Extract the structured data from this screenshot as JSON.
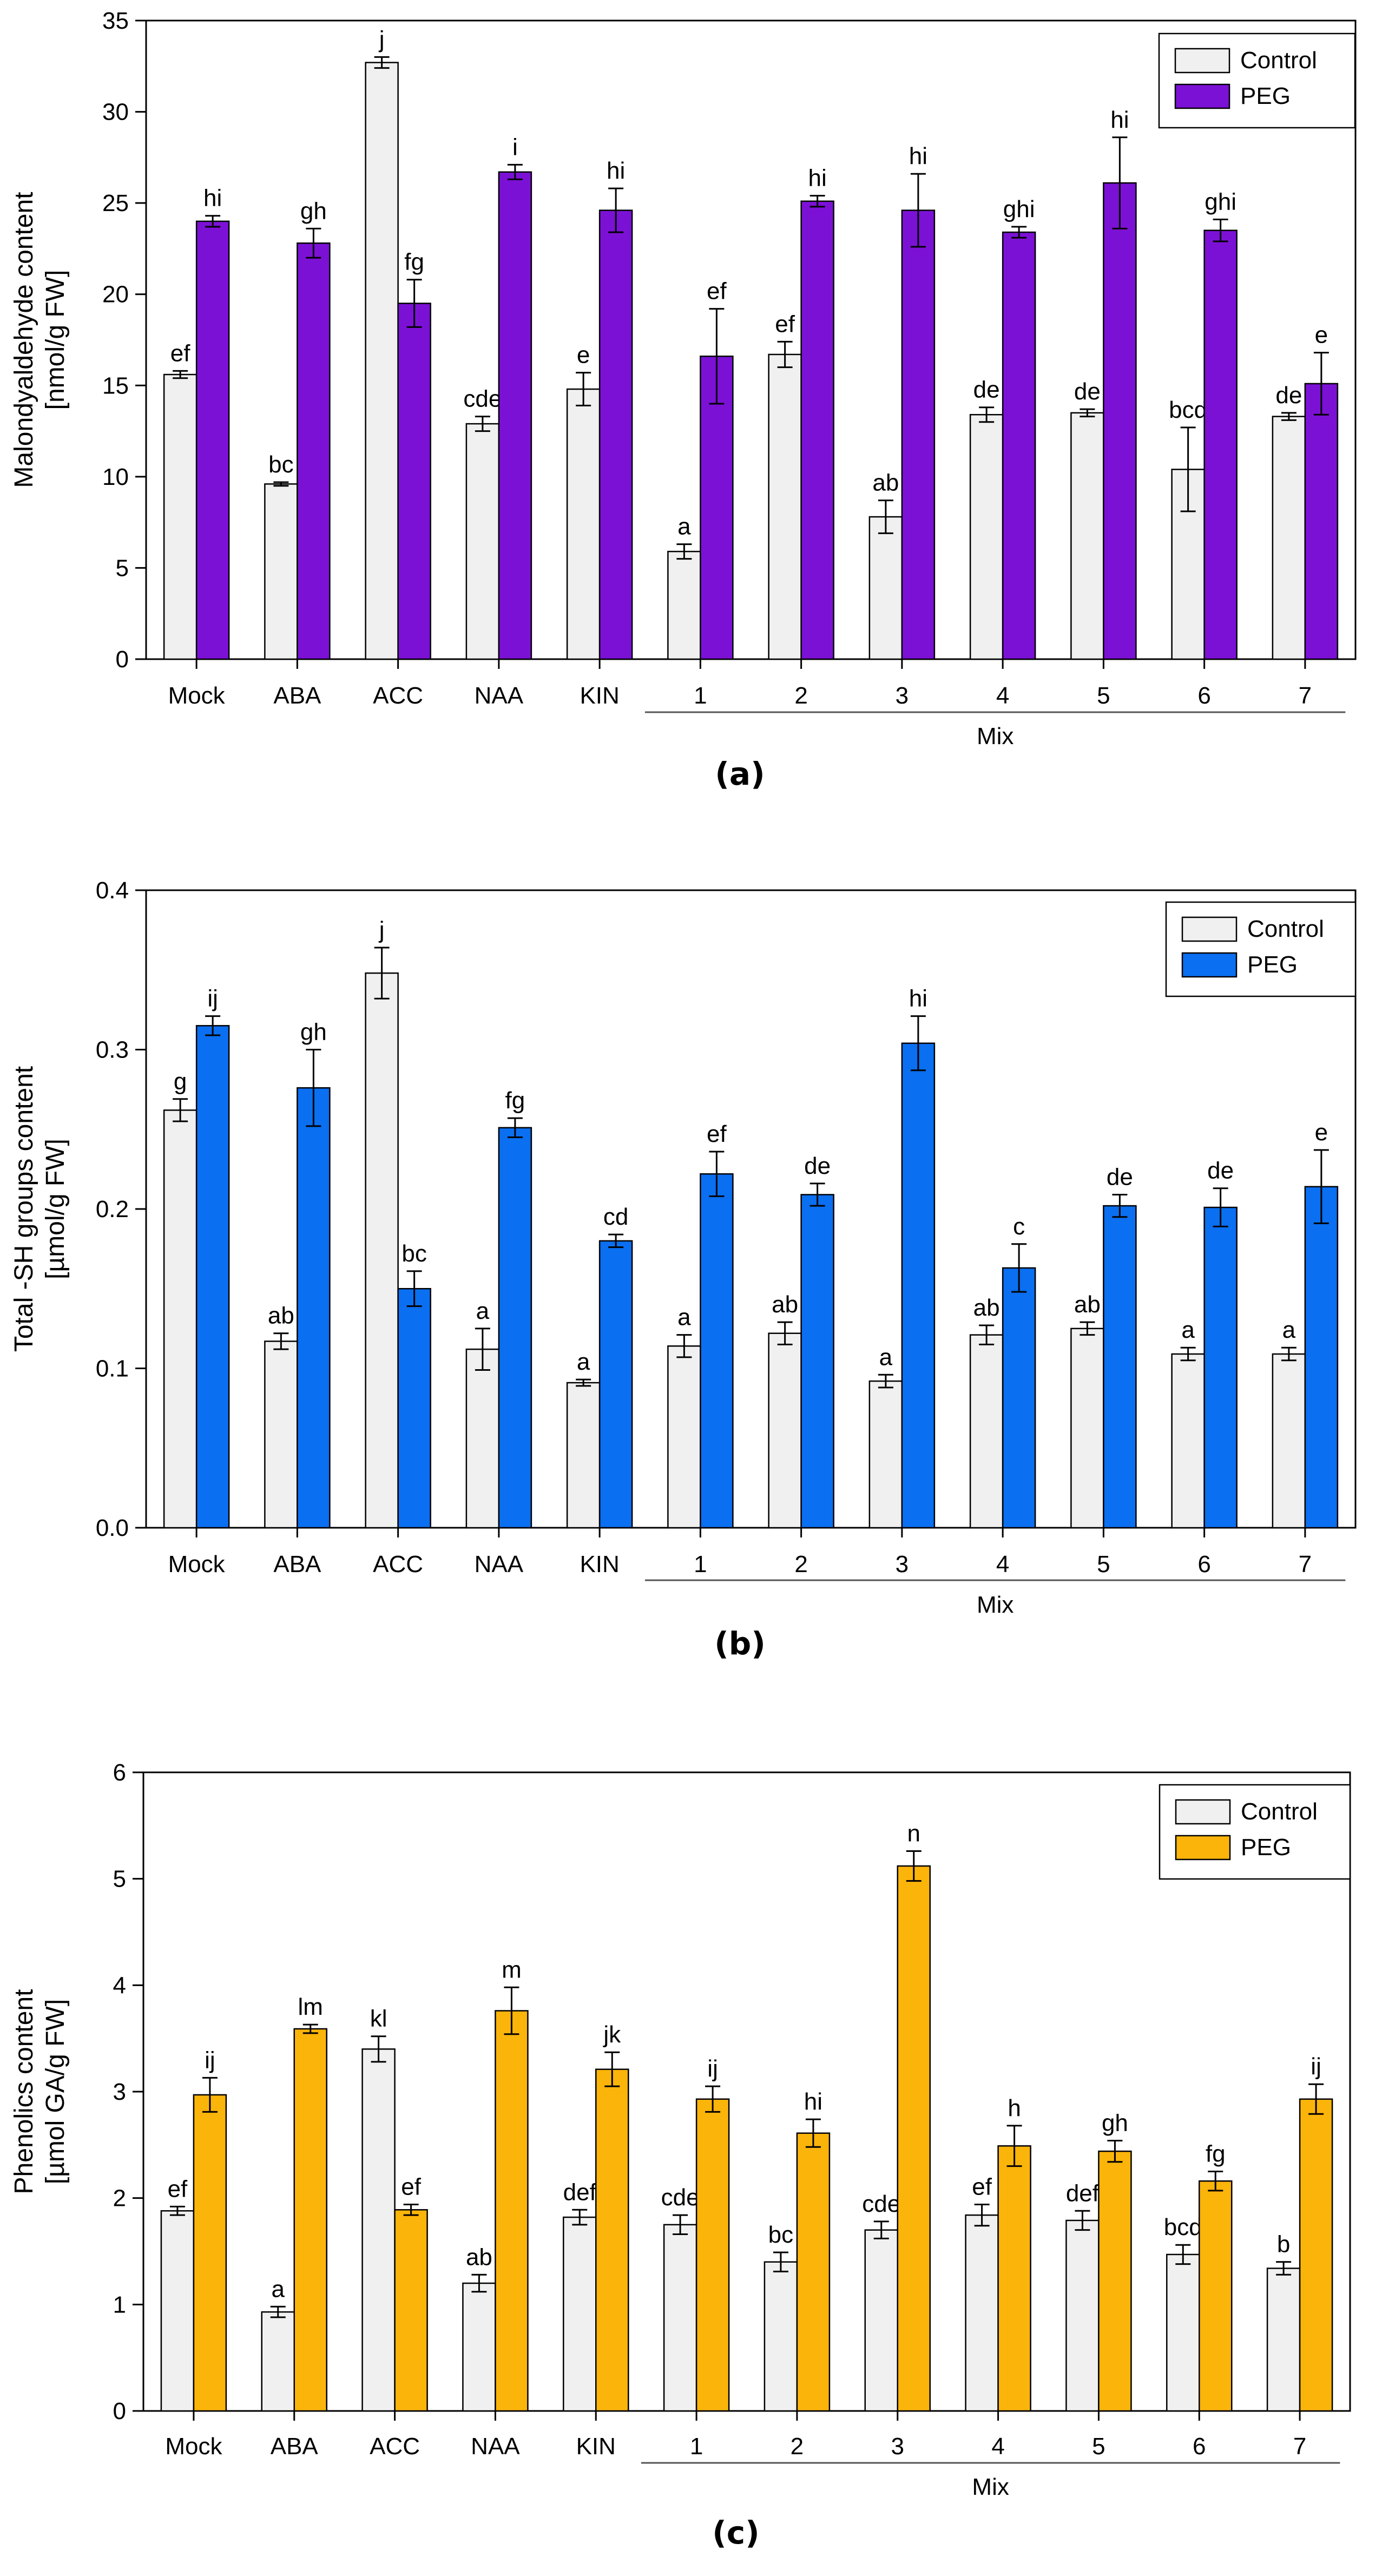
{
  "chart_data": [
    {
      "type": "bar",
      "panel_label": "(a)",
      "ylabel_lines": [
        "Malondyaldehyde content",
        "[nmol/g FW]"
      ],
      "ylim": [
        0,
        35
      ],
      "yticks": [
        0,
        5,
        10,
        15,
        20,
        25,
        30,
        35
      ],
      "categories": [
        "Mock",
        "ABA",
        "ACC",
        "NAA",
        "KIN",
        "1",
        "2",
        "3",
        "4",
        "5",
        "6",
        "7"
      ],
      "group_label": "Mix",
      "legend_position": "top-right",
      "series": [
        {
          "name": "Control",
          "color": "#f0f0f0",
          "values": [
            15.6,
            9.6,
            32.7,
            12.9,
            14.8,
            5.9,
            16.7,
            7.8,
            13.4,
            13.5,
            10.4,
            13.3
          ],
          "errors": [
            0.2,
            0.1,
            0.3,
            0.4,
            0.9,
            0.4,
            0.7,
            0.9,
            0.4,
            0.2,
            2.3,
            0.2
          ],
          "letters": [
            "ef",
            "bc",
            "j",
            "cde",
            "e",
            "a",
            "ef",
            "ab",
            "de",
            "de",
            "bcd",
            "de"
          ]
        },
        {
          "name": "PEG",
          "color": "#7c11d6",
          "values": [
            24.0,
            22.8,
            19.5,
            26.7,
            24.6,
            16.6,
            25.1,
            24.6,
            23.4,
            26.1,
            23.5,
            15.1
          ],
          "errors": [
            0.3,
            0.8,
            1.3,
            0.4,
            1.2,
            2.6,
            0.3,
            2.0,
            0.3,
            2.5,
            0.6,
            1.7
          ],
          "letters": [
            "hi",
            "gh",
            "fg",
            "i",
            "hi",
            "ef",
            "hi",
            "hi",
            "ghi",
            "hi",
            "ghi",
            "e"
          ]
        }
      ]
    },
    {
      "type": "bar",
      "panel_label": "(b)",
      "ylabel_lines": [
        "Total -SH groups content",
        "[µmol/g FW]"
      ],
      "ylim": [
        0,
        0.4
      ],
      "yticks": [
        "0.0",
        "0.1",
        "0.2",
        "0.3",
        "0.4"
      ],
      "categories": [
        "Mock",
        "ABA",
        "ACC",
        "NAA",
        "KIN",
        "1",
        "2",
        "3",
        "4",
        "5",
        "6",
        "7"
      ],
      "group_label": "Mix",
      "legend_position": "top-right",
      "series": [
        {
          "name": "Control",
          "color": "#f0f0f0",
          "values": [
            0.262,
            0.117,
            0.348,
            0.112,
            0.091,
            0.114,
            0.122,
            0.092,
            0.121,
            0.125,
            0.109,
            0.109
          ],
          "errors": [
            0.007,
            0.005,
            0.016,
            0.013,
            0.002,
            0.007,
            0.007,
            0.004,
            0.006,
            0.004,
            0.004,
            0.004
          ],
          "letters": [
            "g",
            "ab",
            "j",
            "a",
            "a",
            "a",
            "ab",
            "a",
            "ab",
            "ab",
            "a",
            "a"
          ]
        },
        {
          "name": "PEG",
          "color": "#0a6ff0",
          "values": [
            0.315,
            0.276,
            0.15,
            0.251,
            0.18,
            0.222,
            0.209,
            0.304,
            0.163,
            0.202,
            0.201,
            0.214
          ],
          "errors": [
            0.006,
            0.024,
            0.011,
            0.006,
            0.004,
            0.014,
            0.007,
            0.017,
            0.015,
            0.007,
            0.012,
            0.023
          ],
          "letters": [
            "ij",
            "gh",
            "bc",
            "fg",
            "cd",
            "ef",
            "de",
            "hi",
            "c",
            "de",
            "de",
            "e"
          ]
        }
      ]
    },
    {
      "type": "bar",
      "panel_label": "(c)",
      "ylabel_lines": [
        "Phenolics content",
        "[µmol GA/g FW]"
      ],
      "ylim": [
        0,
        6
      ],
      "yticks": [
        0,
        1,
        2,
        3,
        4,
        5,
        6
      ],
      "categories": [
        "Mock",
        "ABA",
        "ACC",
        "NAA",
        "KIN",
        "1",
        "2",
        "3",
        "4",
        "5",
        "6",
        "7"
      ],
      "group_label": "Mix",
      "legend_position": "top-right",
      "series": [
        {
          "name": "Control",
          "color": "#f0f0f0",
          "values": [
            1.88,
            0.93,
            3.4,
            1.2,
            1.82,
            1.75,
            1.4,
            1.7,
            1.84,
            1.79,
            1.47,
            1.34
          ],
          "errors": [
            0.04,
            0.05,
            0.12,
            0.08,
            0.07,
            0.09,
            0.09,
            0.08,
            0.1,
            0.09,
            0.09,
            0.06
          ],
          "letters": [
            "ef",
            "a",
            "kl",
            "ab",
            "def",
            "cde",
            "bc",
            "cde",
            "ef",
            "def",
            "bcd",
            "b"
          ]
        },
        {
          "name": "PEG",
          "color": "#fbb40a",
          "values": [
            2.97,
            3.59,
            1.89,
            3.76,
            3.21,
            2.93,
            2.61,
            5.12,
            2.49,
            2.44,
            2.16,
            2.93
          ],
          "errors": [
            0.16,
            0.04,
            0.05,
            0.22,
            0.16,
            0.12,
            0.13,
            0.14,
            0.19,
            0.1,
            0.09,
            0.14
          ],
          "letters": [
            "ij",
            "lm",
            "ef",
            "m",
            "jk",
            "ij",
            "hi",
            "n",
            "h",
            "gh",
            "fg",
            "ij"
          ]
        }
      ]
    }
  ]
}
